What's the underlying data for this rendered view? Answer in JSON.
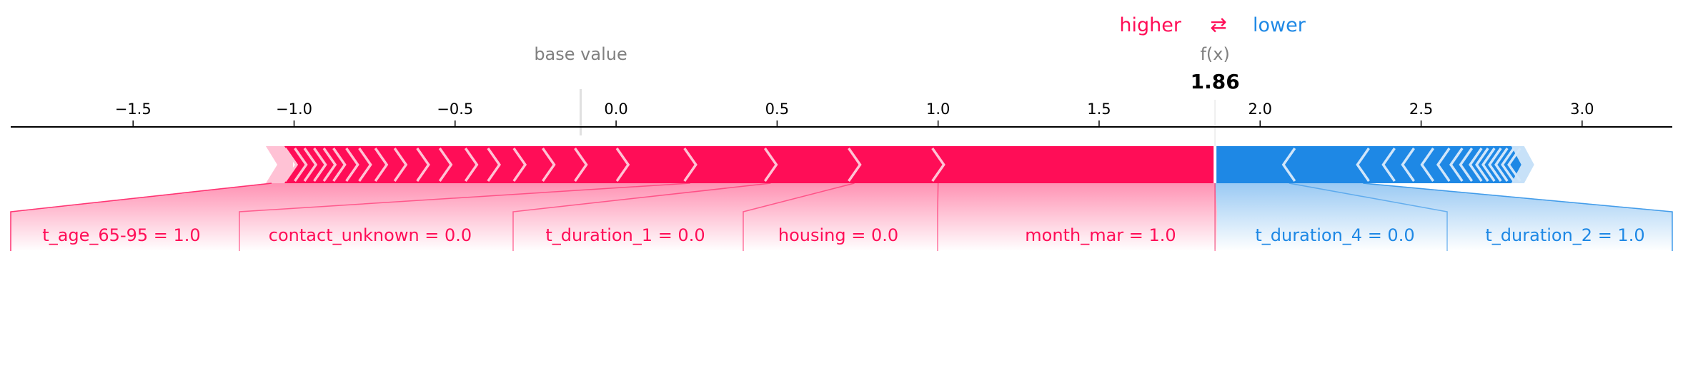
{
  "chart_data": {
    "type": "force",
    "legend": {
      "higher": "higher",
      "arrow": "⇄",
      "lower": "lower"
    },
    "base_label": "base value",
    "output_label": "f(x)",
    "output_value": 1.86,
    "output_text": "1.86",
    "base_value": -0.11,
    "xlim": [
      -1.88,
      3.28
    ],
    "ticks": [
      {
        "value": -1.5,
        "label": "−1.5"
      },
      {
        "value": -1.0,
        "label": "−1.0"
      },
      {
        "value": -0.5,
        "label": "−0.5"
      },
      {
        "value": 0.0,
        "label": "0.0"
      },
      {
        "value": 0.5,
        "label": "0.5"
      },
      {
        "value": 1.0,
        "label": "1.0"
      },
      {
        "value": 1.5,
        "label": "1.5"
      },
      {
        "value": 2.0,
        "label": "2.0"
      },
      {
        "value": 2.5,
        "label": "2.5"
      },
      {
        "value": 3.0,
        "label": "3.0"
      }
    ],
    "positive_range": [
      -1.07,
      1.86
    ],
    "negative_range": [
      1.86,
      2.82
    ],
    "positive_chevrons": [
      -1.01,
      -0.98,
      -0.95,
      -0.92,
      -0.89,
      -0.86,
      -0.82,
      -0.78,
      -0.73,
      -0.67,
      -0.6,
      -0.53,
      -0.45,
      -0.38,
      -0.3,
      -0.21,
      -0.11,
      0.02,
      0.23,
      0.48,
      0.74,
      1.0
    ],
    "negative_chevrons": [
      2.09,
      2.32,
      2.4,
      2.46,
      2.52,
      2.57,
      2.61,
      2.64,
      2.67,
      2.69,
      2.71,
      2.73,
      2.75,
      2.77,
      2.79
    ],
    "positive_features": [
      {
        "label": "t_age_65-95 = 1.0",
        "start": -1.07,
        "end": 0.23
      },
      {
        "label": "contact_unknown = 0.0",
        "start": 0.23,
        "end": 0.48
      },
      {
        "label": "t_duration_1 = 0.0",
        "start": 0.48,
        "end": 0.74
      },
      {
        "label": "housing = 0.0",
        "start": 0.74,
        "end": 1.0
      },
      {
        "label": "month_mar = 1.0",
        "start": 1.0,
        "end": 1.86
      }
    ],
    "negative_features": [
      {
        "label": "t_duration_4 = 0.0",
        "start": 1.86,
        "end": 2.09
      },
      {
        "label": "t_duration_2 = 1.0",
        "start": 2.09,
        "end": 2.32
      }
    ],
    "colors": {
      "positive": "#ff0d57",
      "negative": "#1e88e5",
      "axis": "#000000",
      "label_gray": "#808080"
    }
  }
}
